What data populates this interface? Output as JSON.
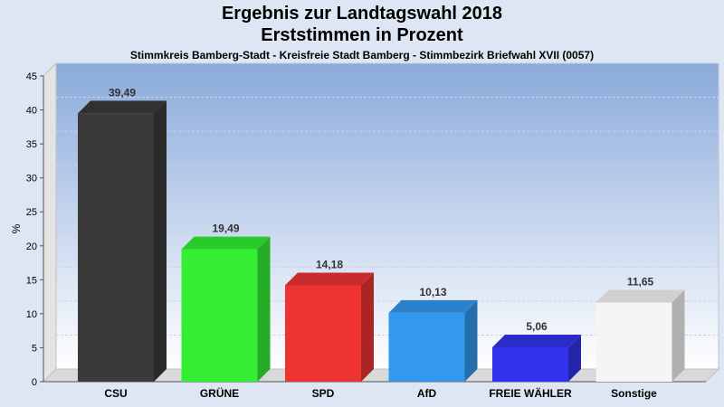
{
  "header": {
    "title_line1": "Ergebnis zur Landtagswahl 2018",
    "title_line2": "Erststimmen in Prozent",
    "subtitle": "Stimmkreis Bamberg-Stadt - Kreisfreie Stadt Bamberg - Stimmbezirk Briefwahl XVII (0057)"
  },
  "chart_data": {
    "type": "bar",
    "title": "Ergebnis zur Landtagswahl 2018 Erststimmen in Prozent",
    "subtitle": "Stimmkreis Bamberg-Stadt - Kreisfreie Stadt Bamberg - Stimmbezirk Briefwahl XVII (0057)",
    "xlabel": "",
    "ylabel": "%",
    "ylim": [
      0,
      45
    ],
    "yticks": [
      0,
      5,
      10,
      15,
      20,
      25,
      30,
      35,
      40,
      45
    ],
    "grid": true,
    "categories": [
      "CSU",
      "GRÜNE",
      "SPD",
      "AfD",
      "FREIE WÄHLER",
      "Sonstige"
    ],
    "values": [
      39.49,
      19.49,
      14.18,
      10.13,
      5.06,
      11.65
    ],
    "value_labels": [
      "39,49",
      "19,49",
      "14,18",
      "10,13",
      "5,06",
      "11,65"
    ],
    "colors": [
      "#3a3a3a",
      "#33ee33",
      "#ee3333",
      "#3399ee",
      "#3333ee",
      "#f5f5f5"
    ]
  }
}
